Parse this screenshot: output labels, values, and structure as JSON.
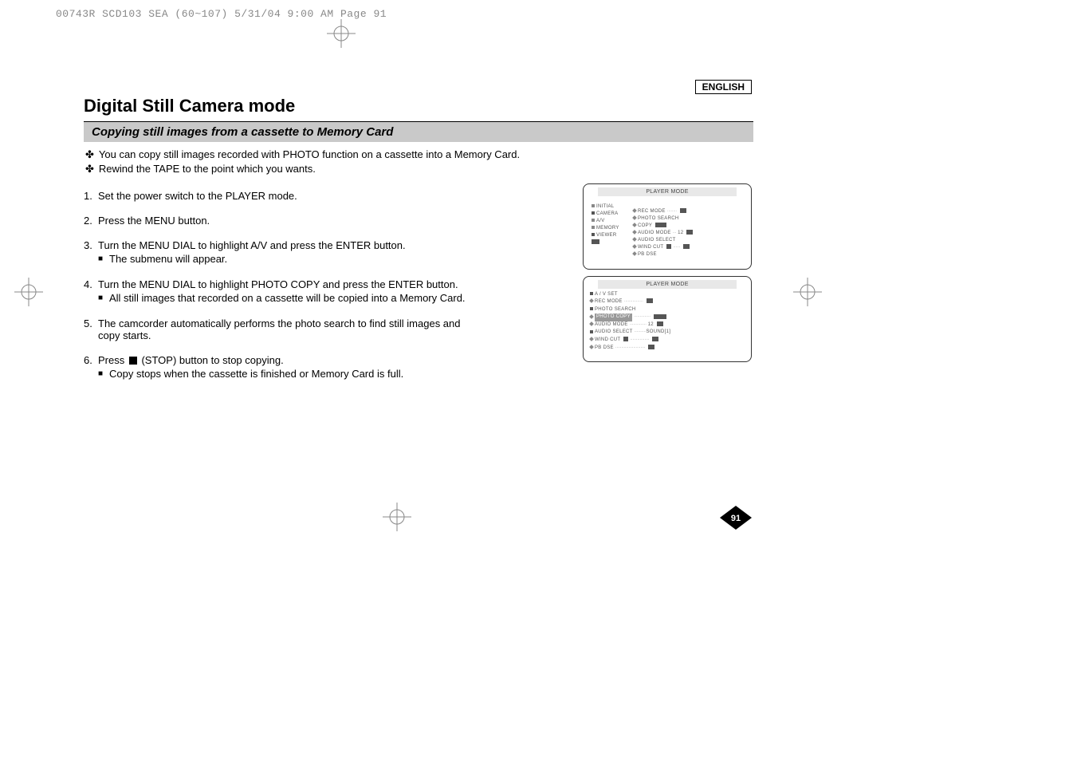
{
  "header_strip": "00743R SCD103 SEA (60~107)  5/31/04 9:00 AM  Page 91",
  "language_label": "ENGLISH",
  "title": "Digital Still Camera mode",
  "subtitle": "Copying still images from a cassette to Memory Card",
  "intro": [
    "You can copy still images recorded with PHOTO function on a cassette into a Memory Card.",
    "Rewind the TAPE to the point which you wants."
  ],
  "steps": [
    {
      "n": "1.",
      "text": "Set the power switch to the PLAYER mode.",
      "subs": []
    },
    {
      "n": "2.",
      "text": "Press the MENU button.",
      "subs": []
    },
    {
      "n": "3.",
      "text": "Turn the MENU DIAL to highlight A/V and press the ENTER button.",
      "subs": [
        "The submenu will appear."
      ]
    },
    {
      "n": "4.",
      "text": "Turn the MENU DIAL to highlight PHOTO COPY and press the ENTER button.",
      "subs": [
        "All still images that recorded on a cassette will be copied into a Memory Card."
      ]
    },
    {
      "n": "5.",
      "text": "The camcorder automatically performs the photo search to find still images and copy starts.",
      "subs": []
    },
    {
      "n": "6.",
      "text": "Press      (STOP) button to stop copying.",
      "subs": [
        "Copy stops when the cassette is finished or Memory Card is full."
      ]
    }
  ],
  "screen1": {
    "title": "PLAYER  MODE",
    "left": [
      "INITIAL",
      "CAMERA",
      "A/V",
      "MEMORY",
      "VIEWER"
    ],
    "right": [
      "REC MODE",
      "PHOTO SEARCH",
      "COPY",
      "AUDIO MODE",
      "AUDIO SELECT",
      "WIND CUT",
      "PB DSE"
    ],
    "right_vals": [
      "",
      "",
      "",
      "12",
      "",
      "",
      ""
    ]
  },
  "screen2": {
    "title": "PLAYER  MODE",
    "heading": "A / V  SET",
    "items": [
      "REC MODE",
      "PHOTO SEARCH",
      "PHOTO COPY",
      "AUDIO MODE",
      "AUDIO SELECT",
      "WIND CUT",
      "PB DSE"
    ],
    "vals": [
      "",
      "",
      "",
      "12",
      "SOUND[1]",
      "",
      ""
    ],
    "highlight_index": 2
  },
  "page_number": "91",
  "colors": {
    "subtitle_bg": "#c9c9c9",
    "screen_border": "#333333",
    "screen_title_bg": "#e8e8e8",
    "text_muted": "#555555",
    "highlight_bg": "#999999"
  }
}
